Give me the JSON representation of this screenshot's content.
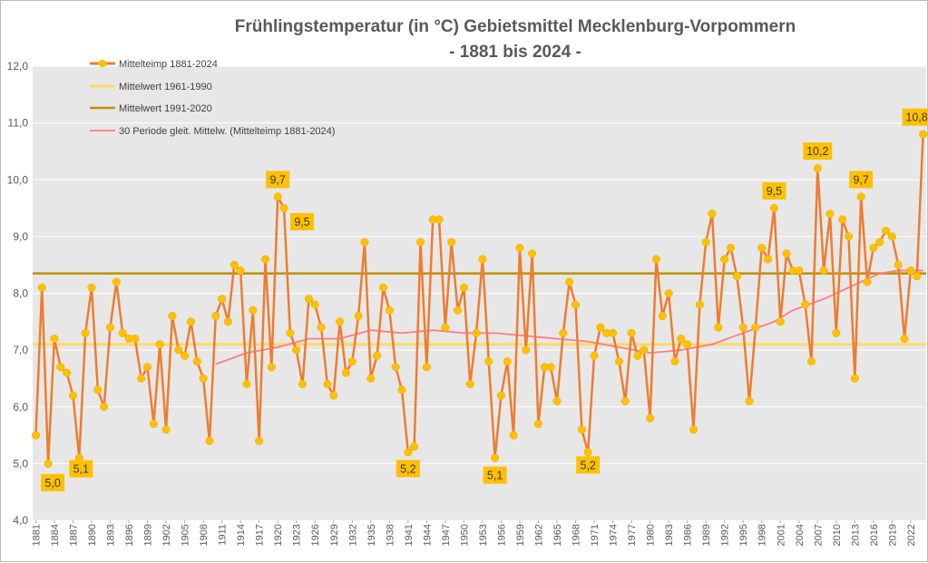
{
  "chart_data": {
    "type": "line",
    "title": "Frühlingstemperatur (in °C) Gebietsmittel Mecklenburg-Vorpommern",
    "subtitle": "- 1881 bis 2024 -",
    "ylim": [
      4.0,
      12.0
    ],
    "y_ticks": [
      "4,0",
      "5,0",
      "6,0",
      "7,0",
      "8,0",
      "9,0",
      "10,0",
      "11,0",
      "12,0"
    ],
    "x_start": 1881,
    "x_end": 2024,
    "x_tick_step": 3,
    "legend": [
      "Mittelteimp 1881-2024",
      "Mittelwert 1961-1990",
      "Mittelwert 1991-2020",
      "30 Periode gleit. Mittelw. (Mittelteimp 1881-2024)"
    ],
    "colors": {
      "series": "#ed7d31",
      "marker": "#ffc000",
      "mean_1961_1990": "#ffd966",
      "mean_1991_2020": "#bf9000",
      "moving_avg": "#ff7c80",
      "plot_bg": "#e7e7e7",
      "grid": "#ffffff",
      "label_bg": "#ffc000"
    },
    "series": [
      {
        "name": "Mittelteimp 1881-2024",
        "values": [
          5.5,
          8.1,
          5.0,
          7.2,
          6.7,
          6.6,
          6.2,
          5.1,
          7.3,
          8.1,
          6.3,
          6.0,
          7.4,
          8.2,
          7.3,
          7.2,
          7.2,
          6.5,
          6.7,
          5.7,
          7.1,
          5.6,
          7.6,
          7.0,
          6.9,
          7.5,
          6.8,
          6.5,
          5.4,
          7.6,
          7.9,
          7.5,
          8.5,
          8.4,
          6.4,
          7.7,
          5.4,
          8.6,
          6.7,
          9.7,
          9.5,
          7.3,
          7.0,
          6.4,
          7.9,
          7.8,
          7.4,
          6.4,
          6.2,
          7.5,
          6.6,
          6.8,
          7.6,
          8.9,
          6.5,
          6.9,
          8.1,
          7.7,
          6.7,
          6.3,
          5.2,
          5.3,
          8.9,
          6.7,
          9.3,
          9.3,
          7.4,
          8.9,
          7.7,
          8.1,
          6.4,
          7.3,
          8.6,
          6.8,
          5.1,
          6.2,
          6.8,
          5.5,
          8.8,
          7.0,
          8.7,
          5.7,
          6.7,
          6.7,
          6.1,
          7.3,
          8.2,
          7.8,
          5.6,
          5.2,
          6.9,
          7.4,
          7.3,
          7.3,
          6.8,
          6.1,
          7.3,
          6.9,
          7.0,
          5.8,
          8.6,
          7.6,
          8.0,
          6.8,
          7.2,
          7.1,
          5.6,
          7.8,
          8.9,
          9.4,
          7.4,
          8.6,
          8.8,
          8.3,
          7.4,
          6.1,
          7.4,
          8.8,
          8.6,
          9.5,
          7.5,
          8.7,
          8.4,
          8.4,
          7.8,
          6.8,
          10.2,
          8.4,
          9.4,
          7.3,
          9.3,
          9.0,
          6.5,
          9.7,
          8.2,
          8.8,
          8.9,
          9.1,
          9.0,
          8.5,
          7.2,
          8.4,
          8.3,
          10.8
        ]
      },
      {
        "name": "Mittelwert 1961-1990",
        "value": 7.1
      },
      {
        "name": "Mittelwert 1991-2020",
        "value": 8.35
      },
      {
        "name": "30 Periode gleit. Mittelw. (Mittelteimp 1881-2024)",
        "x": [
          1910,
          1915,
          1920,
          1925,
          1930,
          1935,
          1940,
          1945,
          1950,
          1955,
          1960,
          1965,
          1970,
          1975,
          1980,
          1985,
          1990,
          1995,
          2000,
          2003,
          2008,
          2013,
          2017,
          2020,
          2024
        ],
        "values": [
          6.75,
          6.95,
          7.05,
          7.2,
          7.2,
          7.35,
          7.3,
          7.35,
          7.3,
          7.3,
          7.25,
          7.2,
          7.15,
          7.05,
          6.95,
          7.0,
          7.1,
          7.3,
          7.5,
          7.7,
          7.9,
          8.15,
          8.35,
          8.4,
          8.4
        ]
      }
    ],
    "annotations": [
      {
        "year": 1883,
        "text": "5,0"
      },
      {
        "year": 1888,
        "text": "5,1"
      },
      {
        "year": 1920,
        "text": "9,7"
      },
      {
        "year": 1921,
        "text": "9,5"
      },
      {
        "year": 1941,
        "text": "5,2"
      },
      {
        "year": 1955,
        "text": "5,1"
      },
      {
        "year": 1970,
        "text": "5,2"
      },
      {
        "year": 2000,
        "text": "9,5"
      },
      {
        "year": 2007,
        "text": "10,2"
      },
      {
        "year": 2014,
        "text": "9,7"
      },
      {
        "year": 2024,
        "text": "10,8"
      }
    ]
  }
}
